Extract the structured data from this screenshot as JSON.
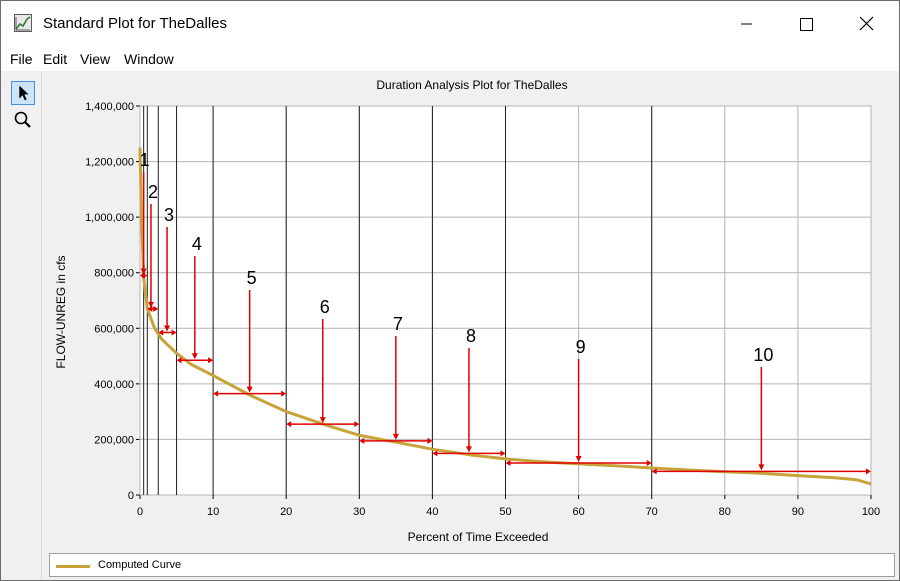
{
  "window": {
    "title": "Standard Plot for TheDalles"
  },
  "menu": [
    "File",
    "Edit",
    "View",
    "Window"
  ],
  "toolbar": {
    "tools": [
      "pointer-tool",
      "zoom-tool"
    ]
  },
  "colors": {
    "curve": "#c8a33a",
    "annotation": "#e00000",
    "grid": "#b4b4b4",
    "dark_line": "#202020"
  },
  "chart_data": {
    "type": "line",
    "title": "Duration Analysis Plot for TheDalles",
    "xlabel": "Percent of Time Exceeded",
    "ylabel": "FLOW-UNREG in cfs",
    "xlim": [
      0,
      100
    ],
    "ylim": [
      0,
      1400000
    ],
    "x_ticks": [
      0,
      10,
      20,
      30,
      40,
      50,
      60,
      70,
      80,
      90,
      100
    ],
    "y_ticks": [
      0,
      200000,
      400000,
      600000,
      800000,
      1000000,
      1200000,
      1400000
    ],
    "y_tick_labels": [
      "0",
      "200,000",
      "400,000",
      "600,000",
      "800,000",
      "1,000,000",
      "1,200,000",
      "1,400,000"
    ],
    "grid": true,
    "legend": "bottom",
    "vertical_lines": [
      0.5,
      1,
      2.5,
      5,
      10,
      20,
      30,
      40,
      50,
      70
    ],
    "series": [
      {
        "name": "Computed Curve",
        "x": [
          0,
          0.2,
          0.5,
          1,
          2,
          3,
          5,
          7,
          10,
          15,
          20,
          25,
          30,
          35,
          40,
          45,
          50,
          55,
          60,
          65,
          70,
          75,
          80,
          85,
          90,
          95,
          98,
          100
        ],
        "y": [
          1250000,
          1000000,
          780000,
          670000,
          600000,
          560000,
          510000,
          470000,
          430000,
          360000,
          300000,
          255000,
          215000,
          190000,
          165000,
          145000,
          130000,
          120000,
          112000,
          105000,
          97000,
          90000,
          84000,
          78000,
          70000,
          62000,
          55000,
          40000
        ]
      }
    ],
    "annotations": [
      {
        "label": "1",
        "x": 0.5,
        "x_range": [
          0,
          1
        ],
        "y": 790000
      },
      {
        "label": "2",
        "x": 1.5,
        "x_range": [
          1,
          2.5
        ],
        "y": 670000
      },
      {
        "label": "3",
        "x": 3.7,
        "x_range": [
          2.5,
          5
        ],
        "y": 585000
      },
      {
        "label": "4",
        "x": 7.5,
        "x_range": [
          5,
          10
        ],
        "y": 485000
      },
      {
        "label": "5",
        "x": 15,
        "x_range": [
          10,
          20
        ],
        "y": 365000
      },
      {
        "label": "6",
        "x": 25,
        "x_range": [
          20,
          30
        ],
        "y": 255000
      },
      {
        "label": "7",
        "x": 35,
        "x_range": [
          30,
          40
        ],
        "y": 195000
      },
      {
        "label": "8",
        "x": 45,
        "x_range": [
          40,
          50
        ],
        "y": 150000
      },
      {
        "label": "9",
        "x": 60,
        "x_range": [
          50,
          70
        ],
        "y": 115000
      },
      {
        "label": "10",
        "x": 85,
        "x_range": [
          70,
          100
        ],
        "y": 85000
      }
    ]
  }
}
